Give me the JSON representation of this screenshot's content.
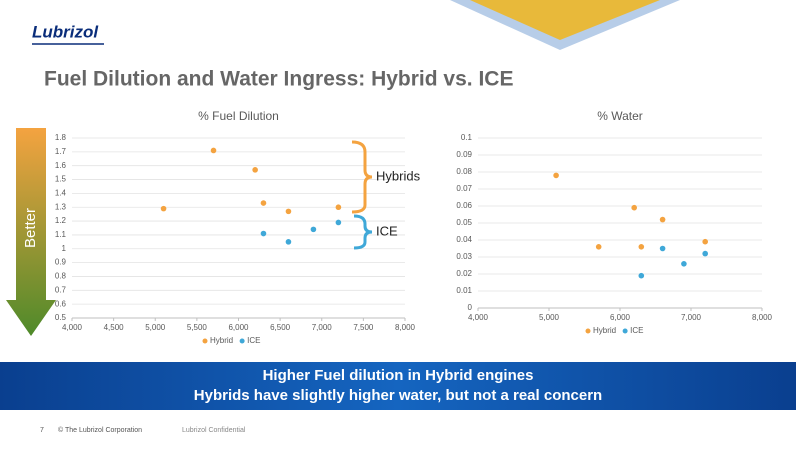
{
  "logo": "Lubrizol",
  "title": "Fuel Dilution and Water Ingress: Hybrid vs. ICE",
  "banner": [
    "Higher Fuel dilution in Hybrid engines",
    "Hybrids have slightly higher water, but not a real concern"
  ],
  "footer": {
    "page": "7",
    "copyright": "© The Lubrizol Corporation",
    "confidential": "Lubrizol Confidential"
  },
  "arrow_label": "Better",
  "chart_data": [
    {
      "type": "scatter",
      "title": "% Fuel Dilution",
      "xlim": [
        4000,
        8000
      ],
      "xticks": [
        {
          "value": 4000,
          "label": "4,000"
        },
        {
          "value": 4500,
          "label": "4,500"
        },
        {
          "value": 5000,
          "label": "5,000"
        },
        {
          "value": 5500,
          "label": "5,500"
        },
        {
          "value": 6000,
          "label": "6,000"
        },
        {
          "value": 6500,
          "label": "6,500"
        },
        {
          "value": 7000,
          "label": "7,000"
        },
        {
          "value": 7500,
          "label": "7,500"
        },
        {
          "value": 8000,
          "label": "8,000"
        }
      ],
      "ylim": [
        0.5,
        1.8
      ],
      "yticks": [
        0.5,
        0.6,
        0.7,
        0.8,
        0.9,
        1,
        1.1,
        1.2,
        1.3,
        1.4,
        1.5,
        1.6,
        1.7,
        1.8
      ],
      "grid": true,
      "annotations": [
        "Hybrids",
        "ICE"
      ],
      "series": [
        {
          "name": "Hybrid",
          "color": "#f4a340",
          "x": [
            5100,
            5700,
            6200,
            6300,
            6600,
            7200
          ],
          "values": [
            1.29,
            1.71,
            1.57,
            1.33,
            1.27,
            1.3
          ]
        },
        {
          "name": "ICE",
          "color": "#3fa8d8",
          "x": [
            6300,
            6600,
            6900,
            7200
          ],
          "values": [
            1.11,
            1.05,
            1.14,
            1.19
          ]
        }
      ]
    },
    {
      "type": "scatter",
      "title": "% Water",
      "xlim": [
        4000,
        8000
      ],
      "xticks": [
        {
          "value": 4000,
          "label": "4,000"
        },
        {
          "value": 5000,
          "label": "5,000"
        },
        {
          "value": 6000,
          "label": "6,000"
        },
        {
          "value": 7000,
          "label": "7,000"
        },
        {
          "value": 8000,
          "label": "8,000"
        }
      ],
      "ylim": [
        0,
        0.1
      ],
      "yticks": [
        0,
        0.01,
        0.02,
        0.03,
        0.04,
        0.05,
        0.06,
        0.07,
        0.08,
        0.09,
        0.1
      ],
      "grid": true,
      "series": [
        {
          "name": "Hybrid",
          "color": "#f4a340",
          "x": [
            5100,
            5700,
            6200,
            6300,
            6600,
            7200
          ],
          "values": [
            0.078,
            0.036,
            0.059,
            0.036,
            0.052,
            0.039
          ]
        },
        {
          "name": "ICE",
          "color": "#3fa8d8",
          "x": [
            6300,
            6600,
            6900,
            7200
          ],
          "values": [
            0.019,
            0.035,
            0.026,
            0.032
          ]
        }
      ]
    }
  ]
}
